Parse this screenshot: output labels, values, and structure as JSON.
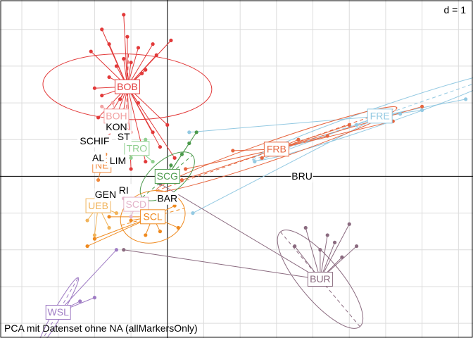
{
  "chart_data": {
    "type": "scatter",
    "title": "PCA mit Datenset ohne NA (allMarkersOnly)",
    "scale_label": "d = 1",
    "grid": true,
    "xlim": [
      -2.3,
      4.2
    ],
    "ylim": [
      -2.2,
      2.4
    ],
    "groups": [
      {
        "name": "BOB",
        "color": "#e23a3a",
        "center": [
          -0.55,
          1.22
        ],
        "ellipse": {
          "rx": 0.45,
          "ry": 1.15,
          "angle": 92
        },
        "points": [
          [
            -0.9,
            2.0
          ],
          [
            -0.8,
            1.8
          ],
          [
            -0.6,
            1.6
          ],
          [
            -0.7,
            1.5
          ],
          [
            -0.5,
            1.55
          ],
          [
            -0.4,
            1.75
          ],
          [
            -0.6,
            2.2
          ],
          [
            -0.2,
            1.8
          ],
          [
            -0.3,
            1.45
          ],
          [
            -0.8,
            1.35
          ],
          [
            -1.0,
            1.2
          ],
          [
            -0.9,
            1.1
          ],
          [
            -0.6,
            0.9
          ],
          [
            -0.4,
            1.0
          ],
          [
            -0.2,
            0.6
          ],
          [
            -0.1,
            0.4
          ],
          [
            -0.3,
            0.2
          ],
          [
            -0.5,
            0.1
          ],
          [
            -0.8,
            0.55
          ],
          [
            -0.95,
            0.8
          ],
          [
            -0.75,
            0.9
          ],
          [
            -0.65,
            1.05
          ],
          [
            -0.45,
            1.25
          ],
          [
            -0.35,
            1.4
          ],
          [
            -0.15,
            1.65
          ],
          [
            0.05,
            1.85
          ],
          [
            -1.05,
            1.7
          ],
          [
            -0.55,
            1.9
          ],
          [
            0.0,
            0.7
          ],
          [
            0.1,
            0.25
          ]
        ]
      },
      {
        "name": "BOH",
        "color": "#f2a2a2",
        "center": [
          -0.7,
          0.82
        ],
        "points": [
          [
            -0.9,
            0.95
          ],
          [
            -0.8,
            0.7
          ],
          [
            -0.6,
            0.85
          ],
          [
            -0.5,
            0.6
          ],
          [
            -0.75,
            1.0
          ]
        ]
      },
      {
        "name": "FRE",
        "color": "#93c9e2",
        "center": [
          2.92,
          0.82
        ],
        "ellipse": {
          "rx": 1.85,
          "ry": 0.12,
          "angle": -19
        },
        "points": [
          [
            0.3,
            0.6
          ],
          [
            0.35,
            -0.5
          ],
          [
            1.2,
            0.2
          ],
          [
            3.2,
            0.85
          ],
          [
            3.5,
            0.9
          ],
          [
            4.1,
            1.05
          ],
          [
            2.6,
            0.7
          ]
        ]
      },
      {
        "name": "FRB",
        "color": "#e6663f",
        "center": [
          1.5,
          0.37
        ],
        "ellipse": {
          "rx": 1.75,
          "ry": 0.13,
          "angle": -19
        },
        "points": [
          [
            0.2,
            -0.05
          ],
          [
            0.25,
            0.1
          ],
          [
            0.9,
            0.35
          ],
          [
            1.3,
            0.25
          ],
          [
            2.5,
            0.7
          ],
          [
            3.1,
            0.75
          ],
          [
            3.5,
            0.95
          ],
          [
            2.2,
            0.55
          ],
          [
            1.8,
            0.5
          ]
        ]
      },
      {
        "name": "SCG",
        "color": "#4c9a4c",
        "center": [
          0.0,
          0.0
        ],
        "ellipse": {
          "rx": 0.45,
          "ry": 0.22,
          "angle": -40
        },
        "points": [
          [
            0.4,
            0.6
          ],
          [
            0.3,
            0.45
          ],
          [
            0.2,
            0.3
          ],
          [
            -0.1,
            -0.1
          ],
          [
            0.05,
            0.15
          ]
        ]
      },
      {
        "name": "TRO",
        "color": "#8fcf8f",
        "center": [
          -0.42,
          0.38
        ],
        "points": [
          [
            -0.3,
            0.5
          ],
          [
            -0.5,
            0.25
          ],
          [
            -0.2,
            0.2
          ]
        ]
      },
      {
        "name": "SCD",
        "color": "#e3b3c9",
        "center": [
          -0.43,
          -0.38
        ],
        "points": [
          [
            -0.6,
            -0.3
          ],
          [
            -0.3,
            -0.5
          ],
          [
            -0.5,
            -0.55
          ]
        ]
      },
      {
        "name": "SCL",
        "color": "#ef8a1f",
        "center": [
          -0.2,
          -0.55
        ],
        "ellipse": {
          "rx": 0.45,
          "ry": 0.35,
          "angle": -15
        },
        "points": [
          [
            -0.1,
            -0.75
          ],
          [
            0.15,
            -0.7
          ],
          [
            -0.3,
            -0.8
          ],
          [
            -0.5,
            -0.6
          ],
          [
            0.1,
            -0.4
          ],
          [
            -0.8,
            -0.55
          ],
          [
            -1.0,
            -0.85
          ],
          [
            -1.1,
            -0.95
          ]
        ]
      },
      {
        "name": "UEB",
        "color": "#f1b35a",
        "center": [
          -0.95,
          -0.4
        ],
        "points": [
          [
            -1.1,
            -0.6
          ],
          [
            -0.8,
            -0.7
          ],
          [
            -1.0,
            -0.8
          ],
          [
            -0.7,
            -0.5
          ]
        ]
      },
      {
        "name": "NE",
        "color": "#f08a3e",
        "center": [
          -0.9,
          0.15
        ],
        "points": [
          [
            -1.0,
            0.1
          ],
          [
            -0.85,
            0.3
          ],
          [
            -0.95,
            -0.05
          ]
        ]
      },
      {
        "name": "BUR",
        "color": "#8a6a7f",
        "center": [
          2.1,
          -1.4
        ],
        "ellipse": {
          "rx": 0.85,
          "ry": 0.28,
          "angle": 50
        },
        "points": [
          [
            1.9,
            -0.7
          ],
          [
            2.2,
            -0.8
          ],
          [
            2.5,
            -0.65
          ],
          [
            2.6,
            -0.95
          ],
          [
            2.1,
            -1.0
          ],
          [
            1.75,
            -0.95
          ],
          [
            -0.1,
            -0.1
          ],
          [
            -0.6,
            -1.0
          ],
          [
            2.3,
            -0.9
          ],
          [
            2.4,
            -1.1
          ]
        ]
      },
      {
        "name": "WSL",
        "color": "#9f7cc4",
        "center": [
          -1.5,
          -1.85
        ],
        "ellipse": {
          "rx": 0.55,
          "ry": 0.06,
          "angle": -60
        },
        "points": [
          [
            -1.0,
            -1.65
          ],
          [
            -1.2,
            -1.7
          ],
          [
            -0.7,
            -1.0
          ],
          [
            -1.45,
            -1.9
          ],
          [
            -1.35,
            -1.8
          ]
        ]
      }
    ],
    "extra_labels": [
      {
        "text": "KON",
        "pos": [
          -0.7,
          0.67
        ]
      },
      {
        "text": "ST",
        "pos": [
          -0.6,
          0.54
        ]
      },
      {
        "text": "SCHIF",
        "pos": [
          -1.0,
          0.48
        ]
      },
      {
        "text": "LIM",
        "pos": [
          -0.68,
          0.21
        ]
      },
      {
        "text": "GEN",
        "pos": [
          -0.85,
          -0.25
        ]
      },
      {
        "text": "RI",
        "pos": [
          -0.6,
          -0.19
        ]
      },
      {
        "text": "BAR",
        "pos": [
          0.0,
          -0.3
        ]
      },
      {
        "text": "BRU",
        "pos": [
          1.85,
          0.0
        ]
      },
      {
        "text": "AL",
        "pos": [
          -0.95,
          0.25
        ]
      }
    ]
  }
}
